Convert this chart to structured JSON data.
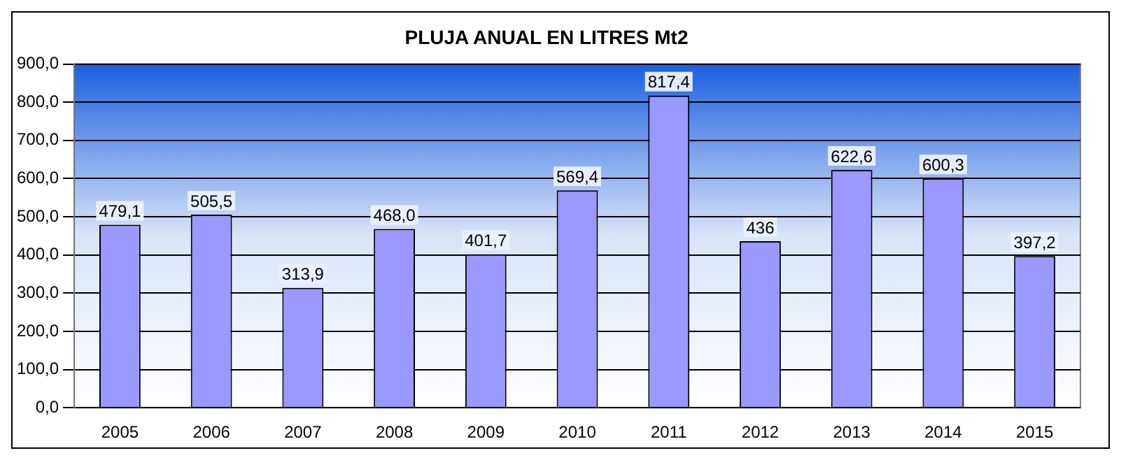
{
  "chart_data": {
    "type": "bar",
    "title": "PLUJA ANUAL EN LITRES Mt2",
    "categories": [
      "2005",
      "2006",
      "2007",
      "2008",
      "2009",
      "2010",
      "2011",
      "2012",
      "2013",
      "2014",
      "2015"
    ],
    "values": [
      479.1,
      505.5,
      313.9,
      468.0,
      401.7,
      569.4,
      817.4,
      436,
      622.6,
      600.3,
      397.2
    ],
    "value_labels": [
      "479,1",
      "505,5",
      "313,9",
      "468,0",
      "401,7",
      "569,4",
      "817,4",
      "436",
      "622,6",
      "600,3",
      "397,2"
    ],
    "color": "#9999ff",
    "ylim": [
      0,
      900
    ],
    "yticks": [
      {
        "value": 0,
        "label": "0,0"
      },
      {
        "value": 100,
        "label": "100,0"
      },
      {
        "value": 200,
        "label": "200,0"
      },
      {
        "value": 300,
        "label": "300,0"
      },
      {
        "value": 400,
        "label": "400,0"
      },
      {
        "value": 500,
        "label": "500,0"
      },
      {
        "value": 600,
        "label": "600,0"
      },
      {
        "value": 700,
        "label": "700,0"
      },
      {
        "value": 800,
        "label": "800,0"
      },
      {
        "value": 900,
        "label": "900,0"
      }
    ],
    "grid": "y",
    "legend": false
  }
}
